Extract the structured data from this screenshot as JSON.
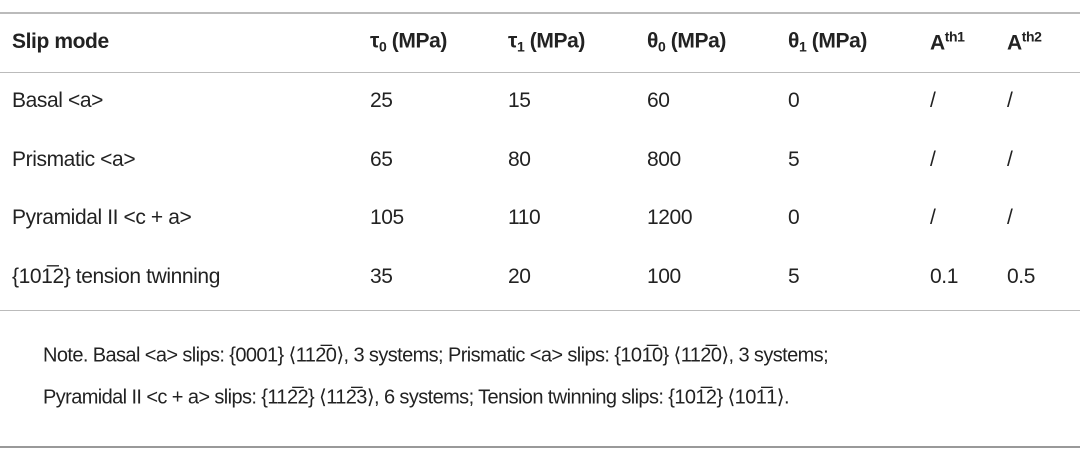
{
  "header": {
    "slip_mode": "Slip mode",
    "tau0": {
      "sym": "τ",
      "sub": "0",
      "unit": " (MPa)"
    },
    "tau1": {
      "sym": "τ",
      "sub": "1",
      "unit": " (MPa)"
    },
    "theta0": {
      "sym": "θ",
      "sub": "0",
      "unit": " (MPa)"
    },
    "theta1": {
      "sym": "θ",
      "sub": "1",
      "unit": " (MPa)"
    },
    "ath1": {
      "sym": "A",
      "sup": "th1"
    },
    "ath2": {
      "sym": "A",
      "sup": "th2"
    }
  },
  "rows": [
    {
      "mode": "Basal <a>",
      "tau0": "25",
      "tau1": "15",
      "theta0": "60",
      "theta1": "0",
      "ath1": "/",
      "ath2": "/"
    },
    {
      "mode": "Prismatic <a>",
      "tau0": "65",
      "tau1": "80",
      "theta0": "800",
      "theta1": "5",
      "ath1": "/",
      "ath2": "/"
    },
    {
      "mode": "Pyramidal II <c + a>",
      "tau0": "105",
      "tau1": "110",
      "theta0": "1200",
      "theta1": "0",
      "ath1": "/",
      "ath2": "/"
    },
    {
      "mode": "{101̅2} tension twinning",
      "tau0": "35",
      "tau1": "20",
      "theta0": "100",
      "theta1": "5",
      "ath1": "0.1",
      "ath2": "0.5"
    }
  ],
  "notes": [
    "Note. Basal <a> slips: {0001} ⟨112̅0⟩, 3 systems; Prismatic <a> slips: {101̅0} ⟨112̅0⟩, 3 systems;",
    "Pyramidal II <c + a> slips: {112̅2} ⟨112̅3⟩, 6 systems; Tension twinning slips: {101̅2} ⟨101̅1⟩."
  ]
}
